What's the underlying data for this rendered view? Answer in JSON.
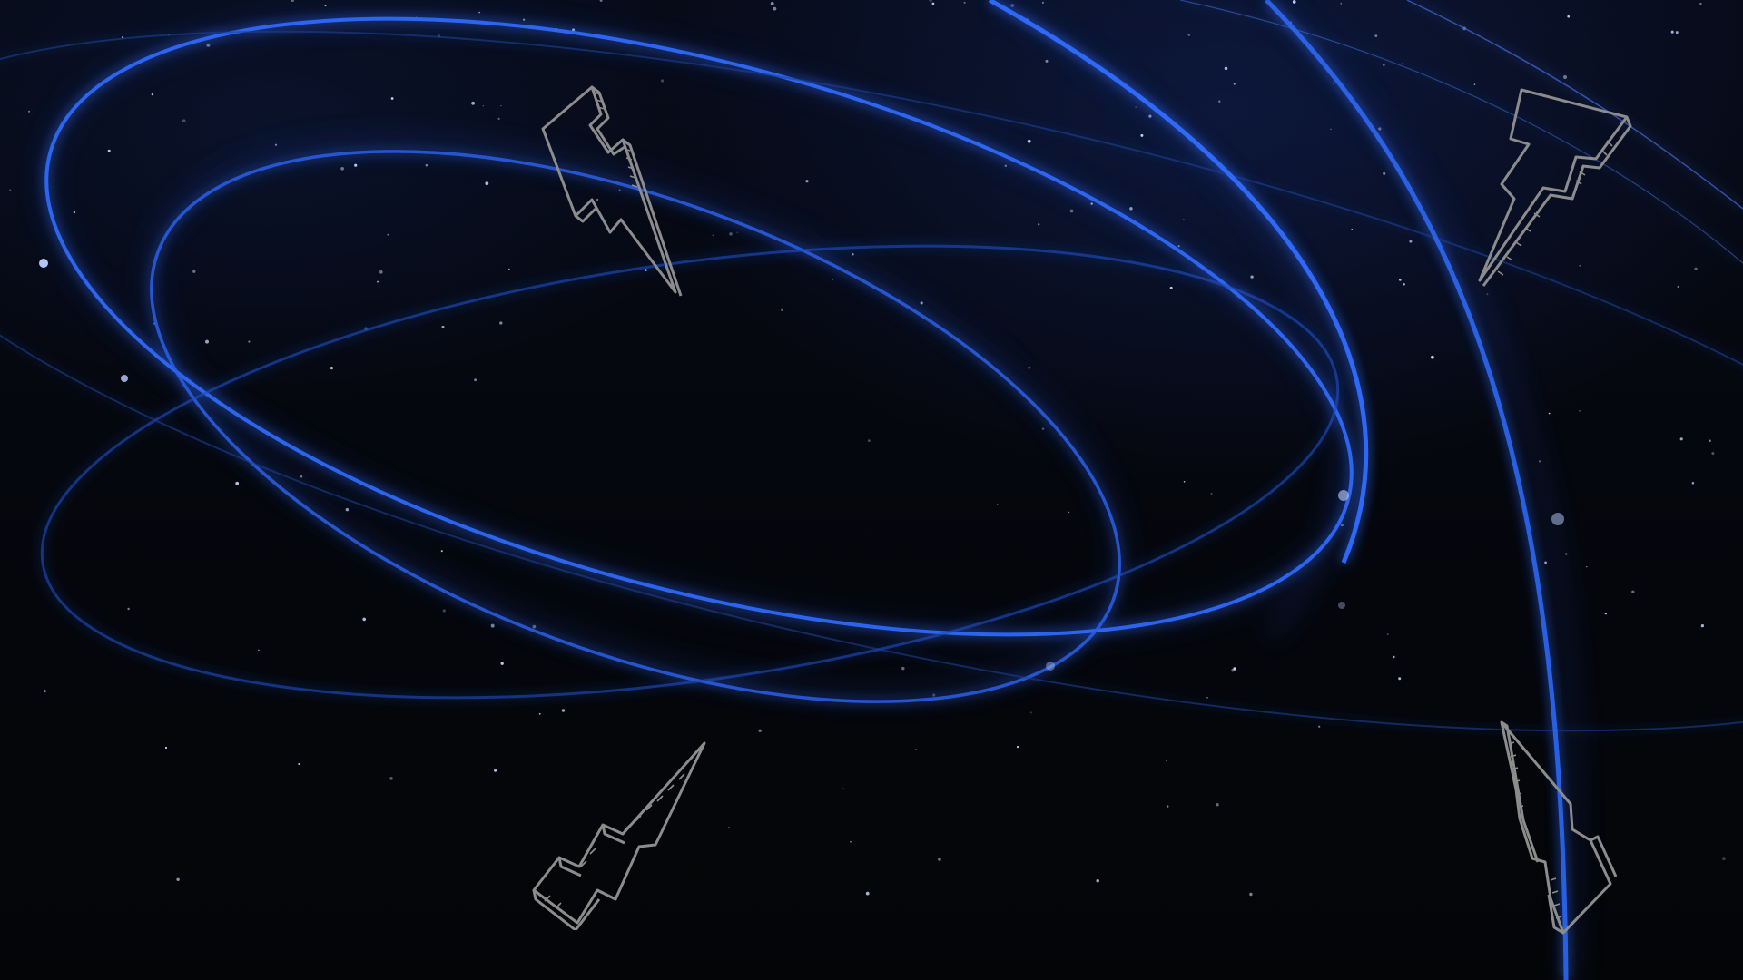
{
  "scene": {
    "description_kind": "space wallpaper",
    "background_color": "#05070c",
    "orbit_color": "#2f6bff",
    "orbit_glow_color": "#1a3fae",
    "star_color": "#cfd8ff",
    "bolt_outline_color": "#8c8c8c",
    "orbit_count": 6,
    "lightning_bolt_count": 4,
    "icons": [
      "lightning-bolt-icon",
      "lightning-bolt-icon",
      "lightning-bolt-icon",
      "lightning-bolt-icon"
    ]
  }
}
